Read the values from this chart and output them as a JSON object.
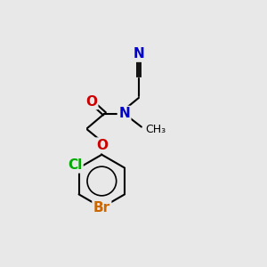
{
  "background_color": "#e8e8e8",
  "bond_color": "#000000",
  "atom_colors": {
    "N": "#0000cc",
    "O": "#cc0000",
    "Cl": "#00aa00",
    "Br": "#cc6600",
    "C_nitrile": "#0000cc"
  },
  "font_size_atoms": 11,
  "fig_size": [
    3.0,
    3.0
  ],
  "dpi": 100
}
